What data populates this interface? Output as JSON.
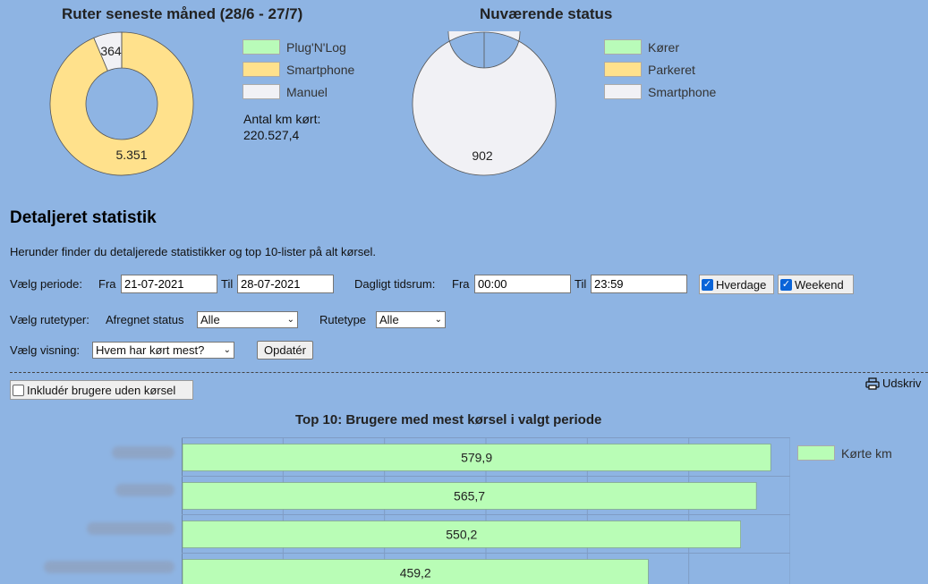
{
  "chart_data": [
    {
      "type": "pie",
      "title": "Ruter seneste måned (28/6 - 27/7)",
      "categories": [
        "Plug'N'Log",
        "Smartphone",
        "Manuel"
      ],
      "values": [
        0,
        5351,
        364
      ],
      "value_labels": [
        "",
        "5.351",
        "364"
      ],
      "colors": [
        "#b9fbb9",
        "#ffe18c",
        "#f1f1f5"
      ],
      "legend": "right"
    },
    {
      "type": "pie",
      "title": "Nuværende status",
      "categories": [
        "Kører",
        "Parkeret",
        "Smartphone"
      ],
      "values": [
        0,
        0,
        902
      ],
      "value_labels": [
        "",
        "",
        "902"
      ],
      "colors": [
        "#b9fbb9",
        "#ffe18c",
        "#f1f1f5"
      ],
      "legend": "right"
    },
    {
      "type": "bar",
      "orientation": "horizontal",
      "title": "Top 10: Brugere med mest kørsel i valgt periode",
      "series": [
        {
          "name": "Kørte km",
          "values": [
            579.9,
            565.7,
            550.2,
            459.2
          ]
        }
      ],
      "value_labels": [
        "579,9",
        "565,7",
        "550,2",
        "459,2"
      ],
      "color": "#b9fdb6",
      "xlim": [
        0,
        600
      ],
      "grid": true,
      "legend": "top-right"
    }
  ],
  "summary": {
    "km_label": "Antal km kørt:",
    "km_value": "220.527,4"
  },
  "section": {
    "title": "Detaljeret statistik",
    "description": "Herunder finder du detaljerede statistikker og top 10-lister på alt kørsel."
  },
  "filters": {
    "period_label": "Vælg periode:",
    "from_label": "Fra",
    "from_value": "21-07-2021",
    "to_label": "Til",
    "to_value": "28-07-2021",
    "daily_label": "Dagligt tidsrum:",
    "daily_from_label": "Fra",
    "daily_from_value": "00:00",
    "daily_to_label": "Til",
    "daily_to_value": "23:59",
    "weekdays_label": "Hverdage",
    "weekend_label": "Weekend",
    "route_types_label": "Vælg rutetyper:",
    "billing_label": "Afregnet status",
    "billing_value": "Alle",
    "route_type_label": "Rutetype",
    "route_type_value": "Alle",
    "view_label": "Vælg visning:",
    "view_value": "Hvem har kørt mest?",
    "update_label": "Opdatér",
    "include_label": "Inkludér brugere uden kørsel",
    "print_label": "Udskriv"
  }
}
